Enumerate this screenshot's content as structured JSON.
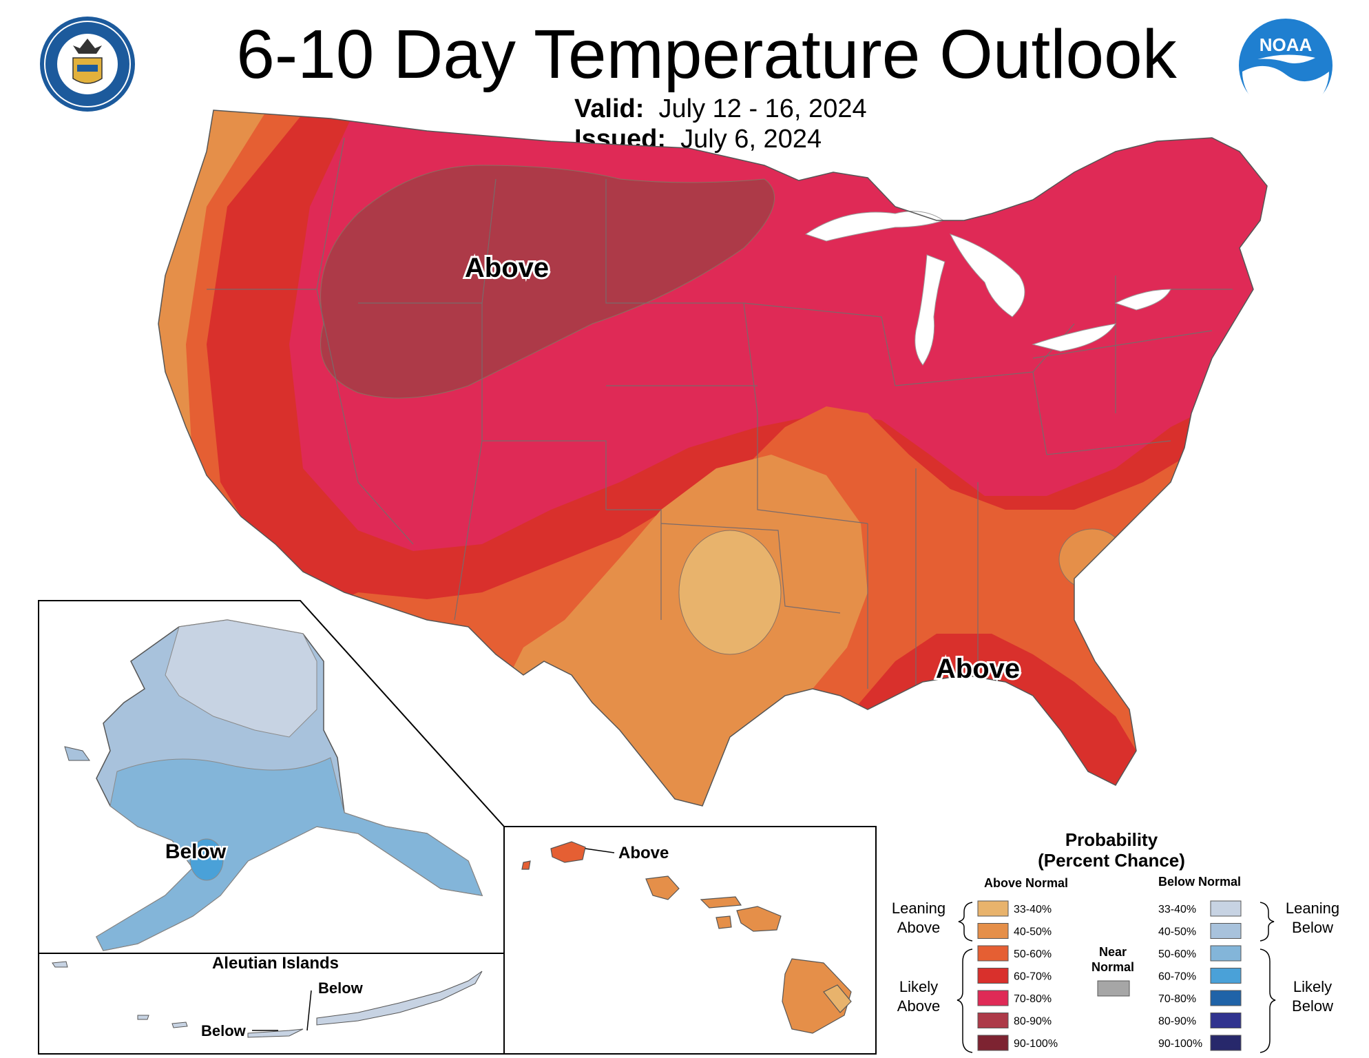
{
  "header": {
    "title": "6-10 Day Temperature Outlook",
    "valid_label": "Valid:",
    "valid_value": "July 12 - 16, 2024",
    "issued_label": "Issued:",
    "issued_value": "July 6, 2024",
    "seal_icon": "department-of-commerce-seal",
    "noaa_logo_text": "NOAA"
  },
  "map_labels": {
    "conus_north": "Above",
    "conus_southeast": "Above",
    "alaska": "Below",
    "hawaii": "Above",
    "aleutian_title": "Aleutian Islands",
    "aleutian_label_1": "Below",
    "aleutian_label_2": "Below"
  },
  "legend": {
    "title_line1": "Probability",
    "title_line2": "(Percent Chance)",
    "above_header": "Above Normal",
    "below_header": "Below Normal",
    "leaning_above": [
      "Leaning",
      "Above"
    ],
    "likely_above": [
      "Likely",
      "Above"
    ],
    "leaning_below": [
      "Leaning",
      "Below"
    ],
    "likely_below": [
      "Likely",
      "Below"
    ],
    "near_normal": [
      "Near",
      "Normal"
    ],
    "near_normal_color": "#a6a6a6",
    "above_items": [
      {
        "label": "33-40%",
        "color": "#e8b36c"
      },
      {
        "label": "40-50%",
        "color": "#e58f49"
      },
      {
        "label": "50-60%",
        "color": "#e55f33"
      },
      {
        "label": "60-70%",
        "color": "#d9302c"
      },
      {
        "label": "70-80%",
        "color": "#df2a56"
      },
      {
        "label": "80-90%",
        "color": "#ad3a48"
      },
      {
        "label": "90-100%",
        "color": "#7d2331"
      }
    ],
    "below_items": [
      {
        "label": "33-40%",
        "color": "#c7d3e3"
      },
      {
        "label": "40-50%",
        "color": "#a8c2dc"
      },
      {
        "label": "50-60%",
        "color": "#83b5d9"
      },
      {
        "label": "60-70%",
        "color": "#4aa1d8"
      },
      {
        "label": "70-80%",
        "color": "#1f63a8"
      },
      {
        "label": "80-90%",
        "color": "#30338f"
      },
      {
        "label": "90-100%",
        "color": "#27286b"
      }
    ]
  },
  "colors": {
    "above_33_40": "#e8b36c",
    "above_40_50": "#e58f49",
    "above_50_60": "#e55f33",
    "above_60_70": "#d9302c",
    "above_70_80": "#df2a56",
    "above_80_90": "#ad3a48",
    "below_33_40": "#c7d3e3",
    "below_40_50": "#a8c2dc",
    "below_50_60": "#83b5d9",
    "lakes": "#ffffff"
  }
}
